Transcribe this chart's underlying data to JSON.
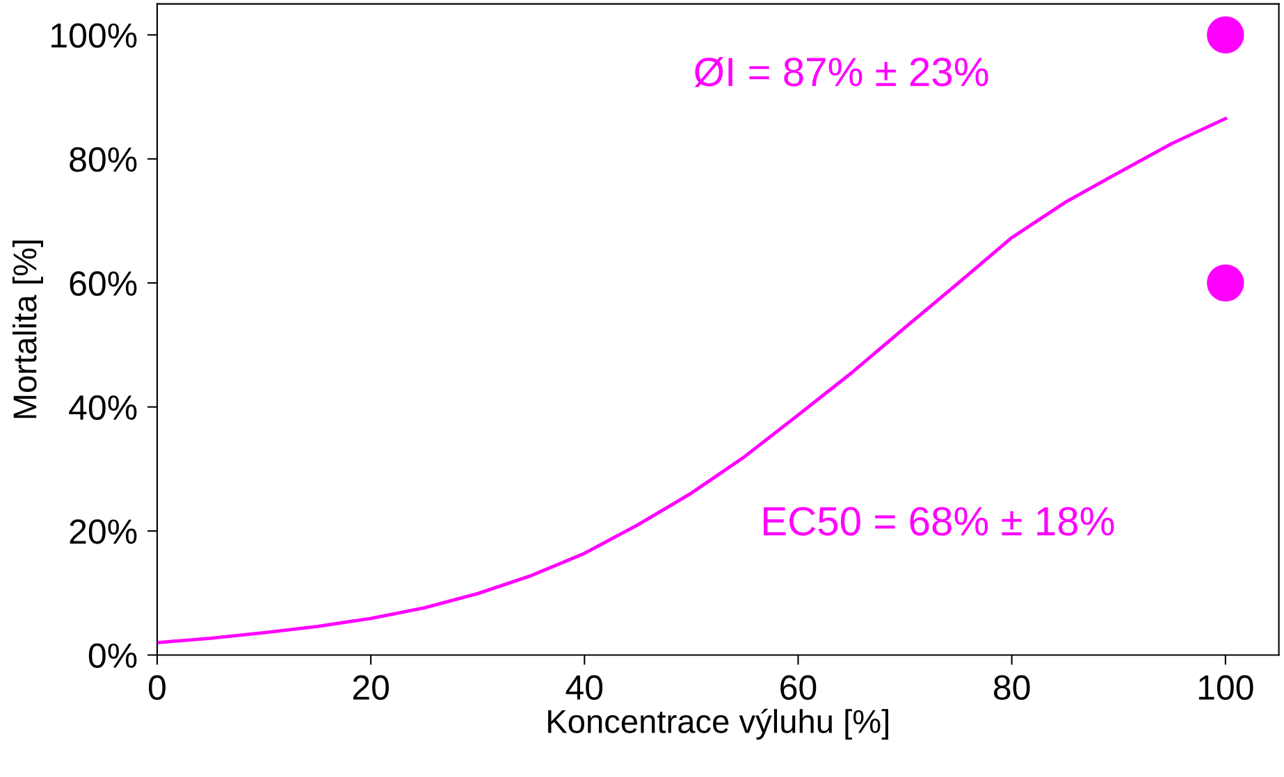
{
  "chart_data": {
    "type": "line",
    "xlabel": "Koncentrace výluhu [%]",
    "ylabel": "Mortalita [%]",
    "xlim": [
      0,
      105
    ],
    "ylim": [
      0,
      105
    ],
    "xticks": [
      0,
      20,
      40,
      60,
      80,
      100
    ],
    "yticks": [
      {
        "value": 0,
        "label": "0%"
      },
      {
        "value": 20,
        "label": "20%"
      },
      {
        "value": 40,
        "label": "40%"
      },
      {
        "value": 60,
        "label": "60%"
      },
      {
        "value": 80,
        "label": "80%"
      },
      {
        "value": 100,
        "label": "100%"
      }
    ],
    "grid": false,
    "legend": false,
    "series": [
      {
        "color": "#ff00ff",
        "marker": "none",
        "line_style": "solid",
        "x": [
          0,
          5,
          10,
          15,
          20,
          25,
          30,
          35,
          40,
          45,
          50,
          55,
          60,
          65,
          70,
          75,
          80,
          85,
          90,
          95,
          100
        ],
        "values": [
          2.0,
          2.7,
          3.6,
          4.6,
          5.9,
          7.6,
          9.9,
          12.8,
          16.4,
          21,
          26.1,
          32,
          38.7,
          45.5,
          52.8,
          60,
          67.3,
          73,
          77.8,
          82.5,
          86.5
        ]
      },
      {
        "type": "scatter",
        "color": "#ff00ff",
        "marker": "circle",
        "x": [
          100,
          100
        ],
        "values": [
          100,
          60
        ]
      }
    ],
    "annotations": [
      "ØI = 87% ± 23%",
      "EC50 = 68% ± 18%"
    ]
  }
}
